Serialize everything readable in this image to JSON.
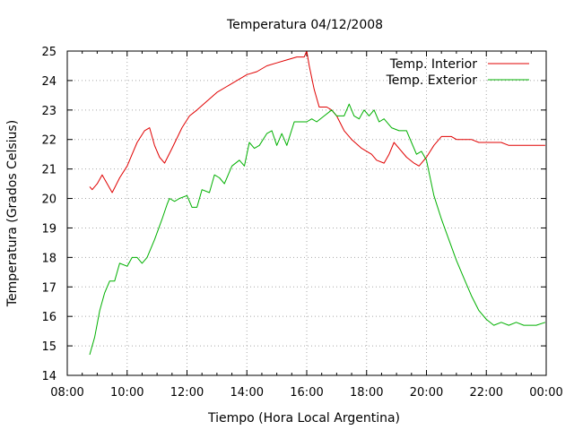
{
  "chart_data": {
    "type": "line",
    "title": "Temperatura 04/12/2008",
    "xlabel": "Tiempo (Hora Local Argentina)",
    "ylabel": "Temperatura (Grados Celsius)",
    "xlim": [
      "08:00",
      "00:00"
    ],
    "ylim": [
      14,
      25
    ],
    "x_ticks": [
      "08:00",
      "10:00",
      "12:00",
      "14:00",
      "16:00",
      "18:00",
      "20:00",
      "22:00",
      "00:00"
    ],
    "y_ticks": [
      "14",
      "15",
      "16",
      "17",
      "18",
      "19",
      "20",
      "21",
      "22",
      "23",
      "24",
      "25"
    ],
    "grid": true,
    "legend_position": "top-right",
    "series": [
      {
        "name": "Temp. Interior",
        "color": "#e00000",
        "points": [
          [
            "08:45",
            20.4
          ],
          [
            "08:50",
            20.3
          ],
          [
            "09:00",
            20.5
          ],
          [
            "09:10",
            20.8
          ],
          [
            "09:20",
            20.5
          ],
          [
            "09:30",
            20.2
          ],
          [
            "09:45",
            20.7
          ],
          [
            "10:00",
            21.1
          ],
          [
            "10:10",
            21.5
          ],
          [
            "10:20",
            21.9
          ],
          [
            "10:35",
            22.3
          ],
          [
            "10:45",
            22.4
          ],
          [
            "10:55",
            21.8
          ],
          [
            "11:05",
            21.4
          ],
          [
            "11:15",
            21.2
          ],
          [
            "11:30",
            21.7
          ],
          [
            "11:50",
            22.4
          ],
          [
            "12:05",
            22.8
          ],
          [
            "12:20",
            23.0
          ],
          [
            "12:40",
            23.3
          ],
          [
            "13:00",
            23.6
          ],
          [
            "13:20",
            23.8
          ],
          [
            "13:40",
            24.0
          ],
          [
            "14:00",
            24.2
          ],
          [
            "14:20",
            24.3
          ],
          [
            "14:40",
            24.5
          ],
          [
            "15:00",
            24.6
          ],
          [
            "15:20",
            24.7
          ],
          [
            "15:40",
            24.8
          ],
          [
            "15:55",
            24.8
          ],
          [
            "16:00",
            25.0
          ],
          [
            "16:05",
            24.5
          ],
          [
            "16:15",
            23.7
          ],
          [
            "16:25",
            23.1
          ],
          [
            "16:40",
            23.1
          ],
          [
            "16:50",
            23.0
          ],
          [
            "17:00",
            22.8
          ],
          [
            "17:15",
            22.3
          ],
          [
            "17:30",
            22.0
          ],
          [
            "17:50",
            21.7
          ],
          [
            "18:10",
            21.5
          ],
          [
            "18:20",
            21.3
          ],
          [
            "18:35",
            21.2
          ],
          [
            "18:45",
            21.5
          ],
          [
            "18:55",
            21.9
          ],
          [
            "19:05",
            21.7
          ],
          [
            "19:20",
            21.4
          ],
          [
            "19:35",
            21.2
          ],
          [
            "19:45",
            21.1
          ],
          [
            "20:00",
            21.4
          ],
          [
            "20:15",
            21.8
          ],
          [
            "20:30",
            22.1
          ],
          [
            "20:50",
            22.1
          ],
          [
            "21:00",
            22.0
          ],
          [
            "21:30",
            22.0
          ],
          [
            "21:45",
            21.9
          ],
          [
            "22:30",
            21.9
          ],
          [
            "22:45",
            21.8
          ],
          [
            "23:30",
            21.8
          ],
          [
            "23:58",
            21.8
          ]
        ]
      },
      {
        "name": "Temp. Exterior",
        "color": "#00b000",
        "points": [
          [
            "08:45",
            14.7
          ],
          [
            "08:55",
            15.3
          ],
          [
            "09:05",
            16.2
          ],
          [
            "09:15",
            16.8
          ],
          [
            "09:25",
            17.2
          ],
          [
            "09:35",
            17.2
          ],
          [
            "09:45",
            17.8
          ],
          [
            "10:00",
            17.7
          ],
          [
            "10:10",
            18.0
          ],
          [
            "10:20",
            18.0
          ],
          [
            "10:30",
            17.8
          ],
          [
            "10:40",
            18.0
          ],
          [
            "10:55",
            18.6
          ],
          [
            "11:10",
            19.3
          ],
          [
            "11:20",
            19.8
          ],
          [
            "11:25",
            20.0
          ],
          [
            "11:35",
            19.9
          ],
          [
            "11:45",
            20.0
          ],
          [
            "12:00",
            20.1
          ],
          [
            "12:10",
            19.7
          ],
          [
            "12:20",
            19.7
          ],
          [
            "12:30",
            20.3
          ],
          [
            "12:45",
            20.2
          ],
          [
            "12:55",
            20.8
          ],
          [
            "13:05",
            20.7
          ],
          [
            "13:15",
            20.5
          ],
          [
            "13:30",
            21.1
          ],
          [
            "13:45",
            21.3
          ],
          [
            "13:55",
            21.1
          ],
          [
            "14:05",
            21.9
          ],
          [
            "14:15",
            21.7
          ],
          [
            "14:25",
            21.8
          ],
          [
            "14:40",
            22.2
          ],
          [
            "14:50",
            22.3
          ],
          [
            "15:00",
            21.8
          ],
          [
            "15:10",
            22.2
          ],
          [
            "15:20",
            21.8
          ],
          [
            "15:35",
            22.6
          ],
          [
            "15:50",
            22.6
          ],
          [
            "16:00",
            22.6
          ],
          [
            "16:10",
            22.7
          ],
          [
            "16:20",
            22.6
          ],
          [
            "16:35",
            22.8
          ],
          [
            "16:50",
            23.0
          ],
          [
            "17:00",
            22.8
          ],
          [
            "17:15",
            22.8
          ],
          [
            "17:25",
            23.2
          ],
          [
            "17:35",
            22.8
          ],
          [
            "17:45",
            22.7
          ],
          [
            "17:55",
            23.0
          ],
          [
            "18:05",
            22.8
          ],
          [
            "18:15",
            23.0
          ],
          [
            "18:25",
            22.6
          ],
          [
            "18:35",
            22.7
          ],
          [
            "18:50",
            22.4
          ],
          [
            "19:05",
            22.3
          ],
          [
            "19:20",
            22.3
          ],
          [
            "19:30",
            21.9
          ],
          [
            "19:40",
            21.5
          ],
          [
            "19:50",
            21.6
          ],
          [
            "20:00",
            21.3
          ],
          [
            "20:15",
            20.1
          ],
          [
            "20:30",
            19.3
          ],
          [
            "20:45",
            18.6
          ],
          [
            "21:00",
            17.9
          ],
          [
            "21:15",
            17.3
          ],
          [
            "21:30",
            16.7
          ],
          [
            "21:45",
            16.2
          ],
          [
            "22:00",
            15.9
          ],
          [
            "22:15",
            15.7
          ],
          [
            "22:30",
            15.8
          ],
          [
            "22:45",
            15.7
          ],
          [
            "23:00",
            15.8
          ],
          [
            "23:15",
            15.7
          ],
          [
            "23:40",
            15.7
          ],
          [
            "23:58",
            15.8
          ]
        ]
      }
    ]
  }
}
